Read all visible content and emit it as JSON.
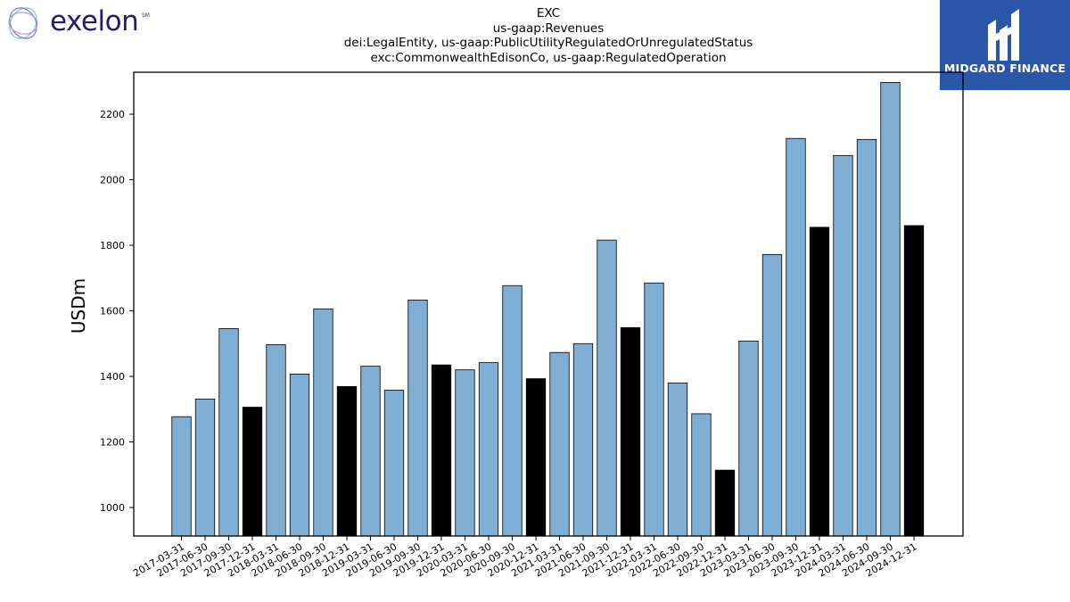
{
  "logos": {
    "left_text": "exelon",
    "left_sup": "SM",
    "right_text": "MIDGARD FINANCE"
  },
  "chart_data": {
    "type": "bar",
    "title_lines": [
      "EXC",
      "us-gaap:Revenues",
      "dei:LegalEntity, us-gaap:PublicUtilityRegulatedOrUnregulatedStatus",
      "exc:CommonwealthEdisonCo, us-gaap:RegulatedOperation"
    ],
    "xlabel": "",
    "ylabel": "USDm",
    "ylim": [
      913,
      2328
    ],
    "yticks": [
      1000,
      1200,
      1400,
      1600,
      1800,
      2000,
      2200
    ],
    "grid": false,
    "colors": {
      "quarter": "#7eaed3",
      "year_end": "#000000",
      "edge": "#000000"
    },
    "categories": [
      "2017-03-31",
      "2017-06-30",
      "2017-09-30",
      "2017-12-31",
      "2018-03-31",
      "2018-06-30",
      "2018-09-30",
      "2018-12-31",
      "2019-03-31",
      "2019-06-30",
      "2019-09-30",
      "2019-12-31",
      "2020-03-31",
      "2020-06-30",
      "2020-09-30",
      "2020-12-31",
      "2021-03-31",
      "2021-06-30",
      "2021-09-30",
      "2021-12-31",
      "2022-03-31",
      "2022-06-30",
      "2022-09-30",
      "2022-12-31",
      "2023-03-31",
      "2023-06-30",
      "2023-09-30",
      "2023-12-31",
      "2024-03-31",
      "2024-06-30",
      "2024-09-30",
      "2024-12-31"
    ],
    "values": [
      1277,
      1331,
      1546,
      1306,
      1497,
      1407,
      1606,
      1369,
      1431,
      1358,
      1633,
      1435,
      1420,
      1442,
      1677,
      1393,
      1473,
      1500,
      1816,
      1549,
      1685,
      1380,
      1286,
      1114,
      1508,
      1772,
      2126,
      1855,
      2074,
      2123,
      2297,
      1860
    ],
    "year_end": [
      false,
      false,
      false,
      true,
      false,
      false,
      false,
      true,
      false,
      false,
      false,
      true,
      false,
      false,
      false,
      true,
      false,
      false,
      false,
      true,
      false,
      false,
      false,
      true,
      false,
      false,
      false,
      true,
      false,
      false,
      false,
      true
    ]
  }
}
